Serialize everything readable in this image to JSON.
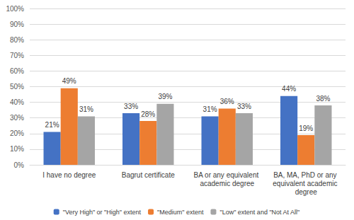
{
  "chart_data": {
    "type": "bar",
    "categories": [
      "I have no degree",
      "Bagrut certificate",
      "BA or any equivalent academic degree",
      "BA, MA, PhD or any equivalent academic degree"
    ],
    "series": [
      {
        "name": "\"Very High\" or \"High\" extent",
        "color": "#4472c4",
        "values": [
          21,
          33,
          31,
          44
        ],
        "value_labels": [
          "21%",
          "33%",
          "31%",
          "44%"
        ]
      },
      {
        "name": "\"Medium\" extent",
        "color": "#ed7d31",
        "values": [
          49,
          28,
          36,
          19
        ],
        "value_labels": [
          "49%",
          "28%",
          "36%",
          "19%"
        ]
      },
      {
        "name": "\"Low\" extent and \"Not At All\"",
        "color": "#a5a5a5",
        "values": [
          31,
          39,
          33,
          38
        ],
        "value_labels": [
          "31%",
          "39%",
          "33%",
          "38%"
        ]
      }
    ],
    "ylim": [
      0,
      100
    ],
    "yticks": [
      {
        "value": 0,
        "label": "0%"
      },
      {
        "value": 10,
        "label": "10%"
      },
      {
        "value": 20,
        "label": "20%"
      },
      {
        "value": 30,
        "label": "30%"
      },
      {
        "value": 40,
        "label": "40%"
      },
      {
        "value": 50,
        "label": "50%"
      },
      {
        "value": 60,
        "label": "60%"
      },
      {
        "value": 70,
        "label": "70%"
      },
      {
        "value": 80,
        "label": "80%"
      },
      {
        "value": 90,
        "label": "90%"
      },
      {
        "value": 100,
        "label": "100%"
      }
    ],
    "grid": true,
    "legend": "bottom",
    "data_labels": true
  }
}
